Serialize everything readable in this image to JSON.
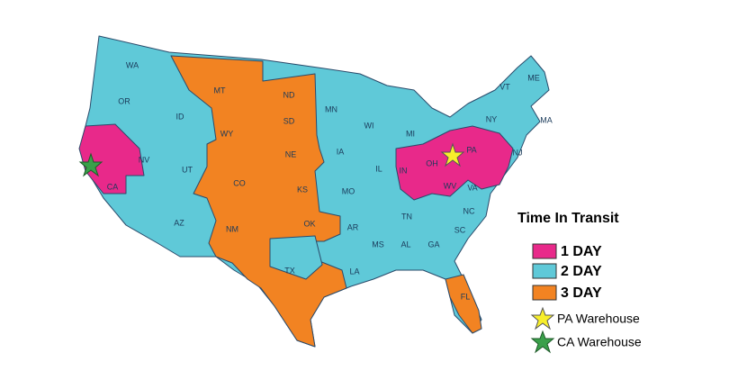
{
  "legend": {
    "title": "Time In Transit",
    "zones": [
      {
        "label": "1 DAY",
        "color": "#e8298a"
      },
      {
        "label": "2 DAY",
        "color": "#5fc9d8"
      },
      {
        "label": "3 DAY",
        "color": "#f28322"
      }
    ],
    "warehouses": [
      {
        "label": "PA Warehouse",
        "color": "#f7ee2b"
      },
      {
        "label": "CA Warehouse",
        "color": "#3aa04a"
      }
    ]
  },
  "states": [
    "WA",
    "OR",
    "ID",
    "MT",
    "ND",
    "MN",
    "SD",
    "WY",
    "NE",
    "IA",
    "WI",
    "MI",
    "NV",
    "UT",
    "CO",
    "KS",
    "MO",
    "IL",
    "IN",
    "OH",
    "PA",
    "NY",
    "VT",
    "ME",
    "MA",
    "NJ",
    "WV",
    "VA",
    "NC",
    "TN",
    "SC",
    "GA",
    "AL",
    "MS",
    "AR",
    "OK",
    "TX",
    "NM",
    "AZ",
    "CA",
    "LA",
    "FL"
  ]
}
